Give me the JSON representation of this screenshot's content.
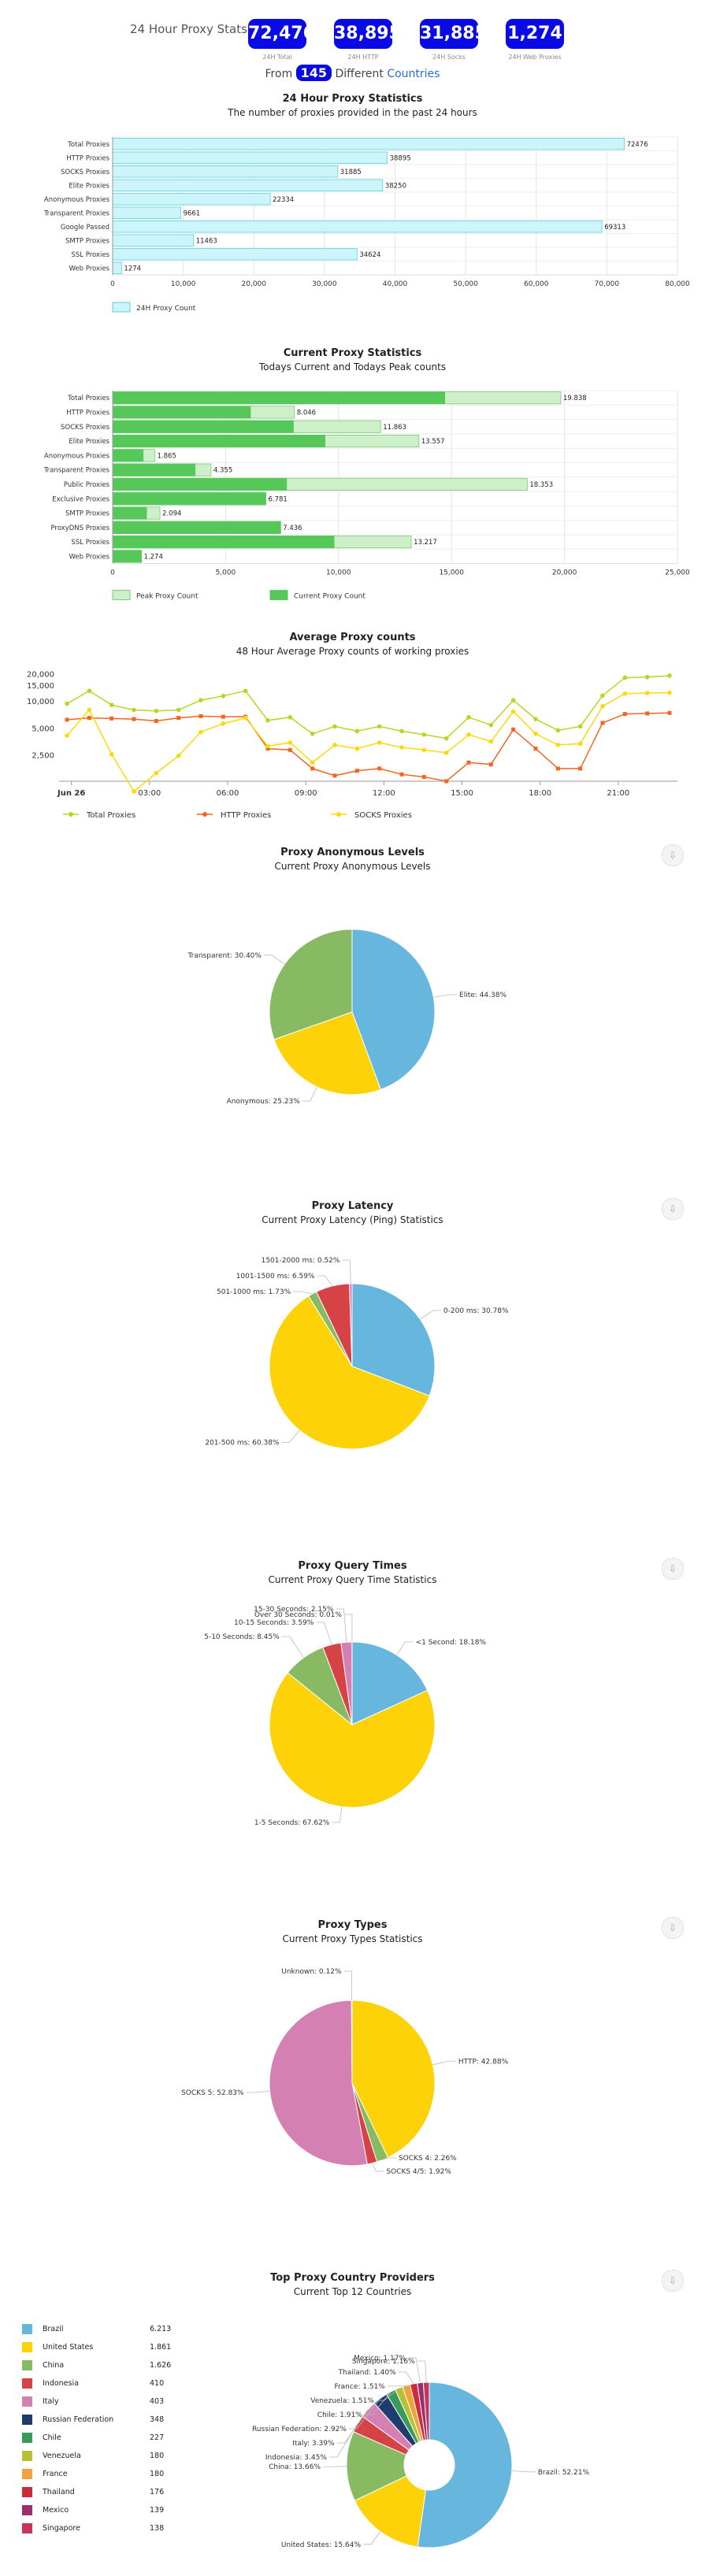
{
  "stats": {
    "title": "24 Hour Proxy Stats",
    "boxes": [
      {
        "value": "72,476",
        "label": "24H Total"
      },
      {
        "value": "38,895",
        "label": "24H HTTP"
      },
      {
        "value": "31,885",
        "label": "24H Socks"
      },
      {
        "value": "1,274",
        "label": "24H Web Proxies"
      }
    ],
    "from_text": "From",
    "country_count": "145",
    "different_text": "Different",
    "countries_link": "Countries"
  },
  "colors": {
    "light_cyan": "#ccf5fb",
    "cyan_border": "#5bd0e0",
    "green": "#56c85a",
    "light_green": "#cdf0c8",
    "total_line": "#b5d722",
    "http_line": "#f26522",
    "socks_line": "#fcd90a",
    "pie_blue": "#67b6de",
    "pie_yellow": "#fdd208",
    "pie_green": "#88ba64",
    "pie_red": "#d54347",
    "pie_pink": "#d480b3"
  },
  "download_icon": "download-icon",
  "chart_data": [
    {
      "type": "bar",
      "title": "24 Hour Proxy Statistics",
      "subtitle": "The number of proxies provided in the past 24 hours",
      "categories": [
        "Total Proxies",
        "HTTP Proxies",
        "SOCKS Proxies",
        "Elite Proxies",
        "Anonymous Proxies",
        "Transparent Proxies",
        "Google Passed",
        "SMTP Proxies",
        "SSL Proxies",
        "Web Proxies"
      ],
      "series": [
        {
          "name": "24H Proxy Count",
          "values": [
            72476,
            38895,
            31885,
            38250,
            22334,
            9661,
            69313,
            11463,
            34624,
            1274
          ]
        }
      ],
      "data_labels": [
        "72476",
        "38895",
        "31885",
        "38250",
        "22334",
        "9661",
        "69313",
        "11463",
        "34624",
        "1274"
      ],
      "x_ticks": [
        "0",
        "10,000",
        "20,000",
        "30,000",
        "40,000",
        "50,000",
        "60,000",
        "70,000",
        "80,000"
      ],
      "xlim": [
        0,
        80000
      ],
      "orientation": "horizontal",
      "grid": true,
      "legend": "bottom-left"
    },
    {
      "type": "bar",
      "title": "Current Proxy Statistics",
      "subtitle": "Todays Current and Todays Peak counts",
      "categories": [
        "Total Proxies",
        "HTTP Proxies",
        "SOCKS Proxies",
        "Elite Proxies",
        "Anonymous Proxies",
        "Transparent Proxies",
        "Public Proxies",
        "Exclusive Proxies",
        "SMTP Proxies",
        "ProxyDNS Proxies",
        "SSL Proxies",
        "Web Proxies"
      ],
      "series": [
        {
          "name": "Peak Count",
          "values": [
            19838,
            8046,
            11863,
            13557,
            1865,
            4355,
            18353,
            6781,
            2094,
            7436,
            13217,
            1274
          ]
        },
        {
          "name": "Current Proxy Count",
          "values": [
            14700,
            6100,
            8000,
            9400,
            1350,
            3650,
            7700,
            6781,
            1500,
            7436,
            9800,
            1274
          ]
        }
      ],
      "data_labels": [
        "19.838",
        "8.046",
        "11.863",
        "13.557",
        "1.865",
        "4.355",
        "18.353",
        "6.781",
        "2.094",
        "7.436",
        "13.217",
        "1.274"
      ],
      "x_ticks": [
        "0",
        "5,000",
        "10,000",
        "15,000",
        "20,000",
        "25,000"
      ],
      "xlim": [
        0,
        25000
      ],
      "orientation": "horizontal",
      "grid": true,
      "legend": "bottom-left"
    },
    {
      "type": "line",
      "title": "Average Proxy counts",
      "subtitle": "48 Hour Average Proxy counts of working proxies",
      "y_scale": "log",
      "y_ticks": [
        "20,000",
        "15,000",
        "10,000",
        "5,000",
        "2,500"
      ],
      "x_ticks": [
        "Jun 26",
        "03:00",
        "06:00",
        "09:00",
        "12:00",
        "15:00",
        "18:00",
        "21:00"
      ],
      "series": [
        {
          "name": "Total Proxies",
          "values": [
            9500,
            13200,
            9200,
            8100,
            7900,
            8100,
            10400,
            11600,
            13200,
            6200,
            6700,
            4400,
            5300,
            4700,
            5300,
            4700,
            4300,
            3900,
            6700,
            5500,
            10400,
            6400,
            4800,
            5300,
            11700,
            18500,
            18800,
            19500
          ]
        },
        {
          "name": "HTTP Proxies",
          "values": [
            6300,
            6600,
            6500,
            6400,
            6100,
            6600,
            6900,
            6800,
            6800,
            3000,
            2900,
            1800,
            1500,
            1700,
            1800,
            1550,
            1450,
            1300,
            2100,
            2000,
            4900,
            3000,
            1800,
            1800,
            5800,
            7300,
            7400,
            7500
          ]
        },
        {
          "name": "SOCKS Proxies",
          "values": [
            4200,
            8100,
            2600,
            1000,
            1600,
            2500,
            4600,
            5700,
            6600,
            3200,
            3500,
            2100,
            3300,
            3000,
            3500,
            3100,
            2900,
            2700,
            4300,
            3600,
            7800,
            4400,
            3300,
            3400,
            8900,
            12300,
            12500,
            12600
          ]
        }
      ],
      "grid": false,
      "legend": "bottom-left"
    },
    {
      "type": "pie",
      "title": "Proxy Anonymous Levels",
      "subtitle": "Current Proxy Anonymous Levels",
      "slices": [
        {
          "label": "Elite: 44.38%",
          "value": 44.38,
          "color": "#67b6de"
        },
        {
          "label": "Anonymous: 25.23%",
          "value": 25.23,
          "color": "#fdd208"
        },
        {
          "label": "Transparent: 30.40%",
          "value": 30.4,
          "color": "#88ba64"
        }
      ]
    },
    {
      "type": "pie",
      "title": "Proxy Latency",
      "subtitle": "Current Proxy Latency (Ping) Statistics",
      "slices": [
        {
          "label": "0-200 ms: 30.78%",
          "value": 30.78,
          "color": "#67b6de"
        },
        {
          "label": "201-500 ms: 60.38%",
          "value": 60.38,
          "color": "#fdd208"
        },
        {
          "label": "501-1000 ms: 1.73%",
          "value": 1.73,
          "color": "#88ba64"
        },
        {
          "label": "1001-1500 ms: 6.59%",
          "value": 6.59,
          "color": "#d54347"
        },
        {
          "label": "1501-2000 ms: 0.52%",
          "value": 0.52,
          "color": "#d480b3"
        }
      ]
    },
    {
      "type": "pie",
      "title": "Proxy Query Times",
      "subtitle": "Current Proxy Query Time Statistics",
      "slices": [
        {
          "label": "<1 Second: 18.18%",
          "value": 18.18,
          "color": "#67b6de"
        },
        {
          "label": "1-5 Seconds: 67.62%",
          "value": 67.62,
          "color": "#fdd208"
        },
        {
          "label": "5-10 Seconds: 8.45%",
          "value": 8.45,
          "color": "#88ba64"
        },
        {
          "label": "10-15 Seconds: 3.59%",
          "value": 3.59,
          "color": "#d54347"
        },
        {
          "label": "15-30 Seconds: 2.15%",
          "value": 2.15,
          "color": "#d480b3"
        },
        {
          "label": "Over 30 Seconds: 0.01%",
          "value": 0.01,
          "color": "#9aa0c8"
        }
      ]
    },
    {
      "type": "pie",
      "title": "Proxy Types",
      "subtitle": "Current Proxy Types Statistics",
      "slices": [
        {
          "label": "HTTP: 42.88%",
          "value": 42.88,
          "color": "#fdd208"
        },
        {
          "label": "SOCKS 4: 2.26%",
          "value": 2.26,
          "color": "#88ba64"
        },
        {
          "label": "SOCKS 4/5: 1.92%",
          "value": 1.92,
          "color": "#d54347"
        },
        {
          "label": "SOCKS 5: 52.83%",
          "value": 52.83,
          "color": "#d480b3"
        },
        {
          "label": "Unknown: 0.12%",
          "value": 0.12,
          "color": "#67b6de"
        }
      ]
    },
    {
      "type": "pie",
      "title": "Top Proxy Country Providers",
      "subtitle": "Current Top 12 Countries",
      "donut": true,
      "slices": [
        {
          "label": "Brazil: 52.21%",
          "name": "Brazil",
          "count": "6.213",
          "value": 52.21,
          "color": "#67b6de"
        },
        {
          "label": "United States: 15.64%",
          "name": "United States",
          "count": "1.861",
          "value": 15.64,
          "color": "#fdd208"
        },
        {
          "label": "China: 13.66%",
          "name": "China",
          "count": "1.626",
          "value": 13.66,
          "color": "#88ba64"
        },
        {
          "label": "Indonesia: 3.45%",
          "name": "Indonesia",
          "count": "410",
          "value": 3.45,
          "color": "#d54347"
        },
        {
          "label": "Italy: 3.39%",
          "name": "Italy",
          "count": "403",
          "value": 3.39,
          "color": "#d480b3"
        },
        {
          "label": "Russian Federation: 2.92%",
          "name": "Russian Federation",
          "count": "348",
          "value": 2.92,
          "color": "#1f3c6e"
        },
        {
          "label": "Chile: 1.91%",
          "name": "Chile",
          "count": "227",
          "value": 1.91,
          "color": "#3a9a5b"
        },
        {
          "label": "Venezuela: 1.51%",
          "name": "Venezuela",
          "count": "180",
          "value": 1.51,
          "color": "#b5c234"
        },
        {
          "label": "France: 1.51%",
          "name": "France",
          "count": "180",
          "value": 1.51,
          "color": "#f2a23c"
        },
        {
          "label": "Thailand: 1.40%",
          "name": "Thailand",
          "count": "176",
          "value": 1.4,
          "color": "#cc2b37"
        },
        {
          "label": "Mexico: 1.17%",
          "name": "Mexico",
          "count": "139",
          "value": 1.17,
          "color": "#9b2f6e"
        },
        {
          "label": "Singapore: 1.16%",
          "name": "Singapore",
          "count": "138",
          "value": 1.16,
          "color": "#c4365b"
        }
      ]
    }
  ]
}
